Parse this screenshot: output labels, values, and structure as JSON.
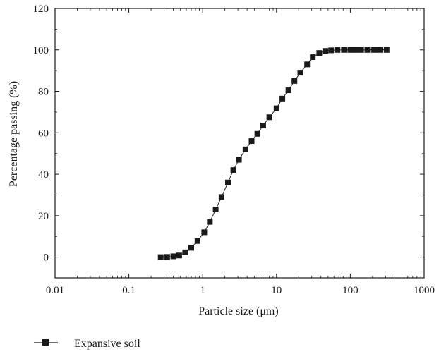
{
  "chart_data": {
    "type": "scatter",
    "title": "",
    "xlabel": "Particle size (μm)",
    "ylabel": "Percentage passing (%)",
    "xscale": "log",
    "xlim": [
      0.01,
      1000
    ],
    "ylim": [
      -10,
      120
    ],
    "x_ticks": [
      0.01,
      0.1,
      1,
      10,
      100,
      1000
    ],
    "x_tick_labels": [
      "0.01",
      "0.1",
      "1",
      "10",
      "100",
      "1000"
    ],
    "y_ticks": [
      0,
      20,
      40,
      60,
      80,
      100,
      120
    ],
    "y_tick_labels": [
      "0",
      "20",
      "40",
      "60",
      "80",
      "100",
      "120"
    ],
    "grid": false,
    "legend_position": "bottom-left, below plot",
    "series": [
      {
        "name": "Expansive soil",
        "marker": "square",
        "line": "solid",
        "color": "#1a1a1a",
        "x": [
          0.27,
          0.33,
          0.4,
          0.48,
          0.58,
          0.7,
          0.85,
          1.05,
          1.25,
          1.5,
          1.8,
          2.2,
          2.6,
          3.1,
          3.8,
          4.6,
          5.5,
          6.6,
          8.0,
          10.0,
          12.0,
          14.5,
          17.5,
          21.0,
          26.0,
          31.0,
          38.0,
          46.0,
          55.0,
          67.0,
          82.0,
          100.0,
          118.0,
          140.0,
          170.0,
          210.0,
          250.0,
          310.0
        ],
        "y": [
          0,
          0.1,
          0.4,
          0.8,
          2.3,
          4.5,
          7.8,
          12,
          17,
          23,
          29,
          36,
          42,
          47,
          52,
          56,
          59.5,
          63.5,
          67.5,
          71.8,
          76.5,
          80.5,
          85,
          89,
          93,
          96.5,
          98.5,
          99.5,
          99.8,
          100,
          100,
          100,
          100,
          100,
          100,
          100,
          100,
          100
        ]
      }
    ]
  },
  "legend": {
    "label": "Expansive soil"
  }
}
